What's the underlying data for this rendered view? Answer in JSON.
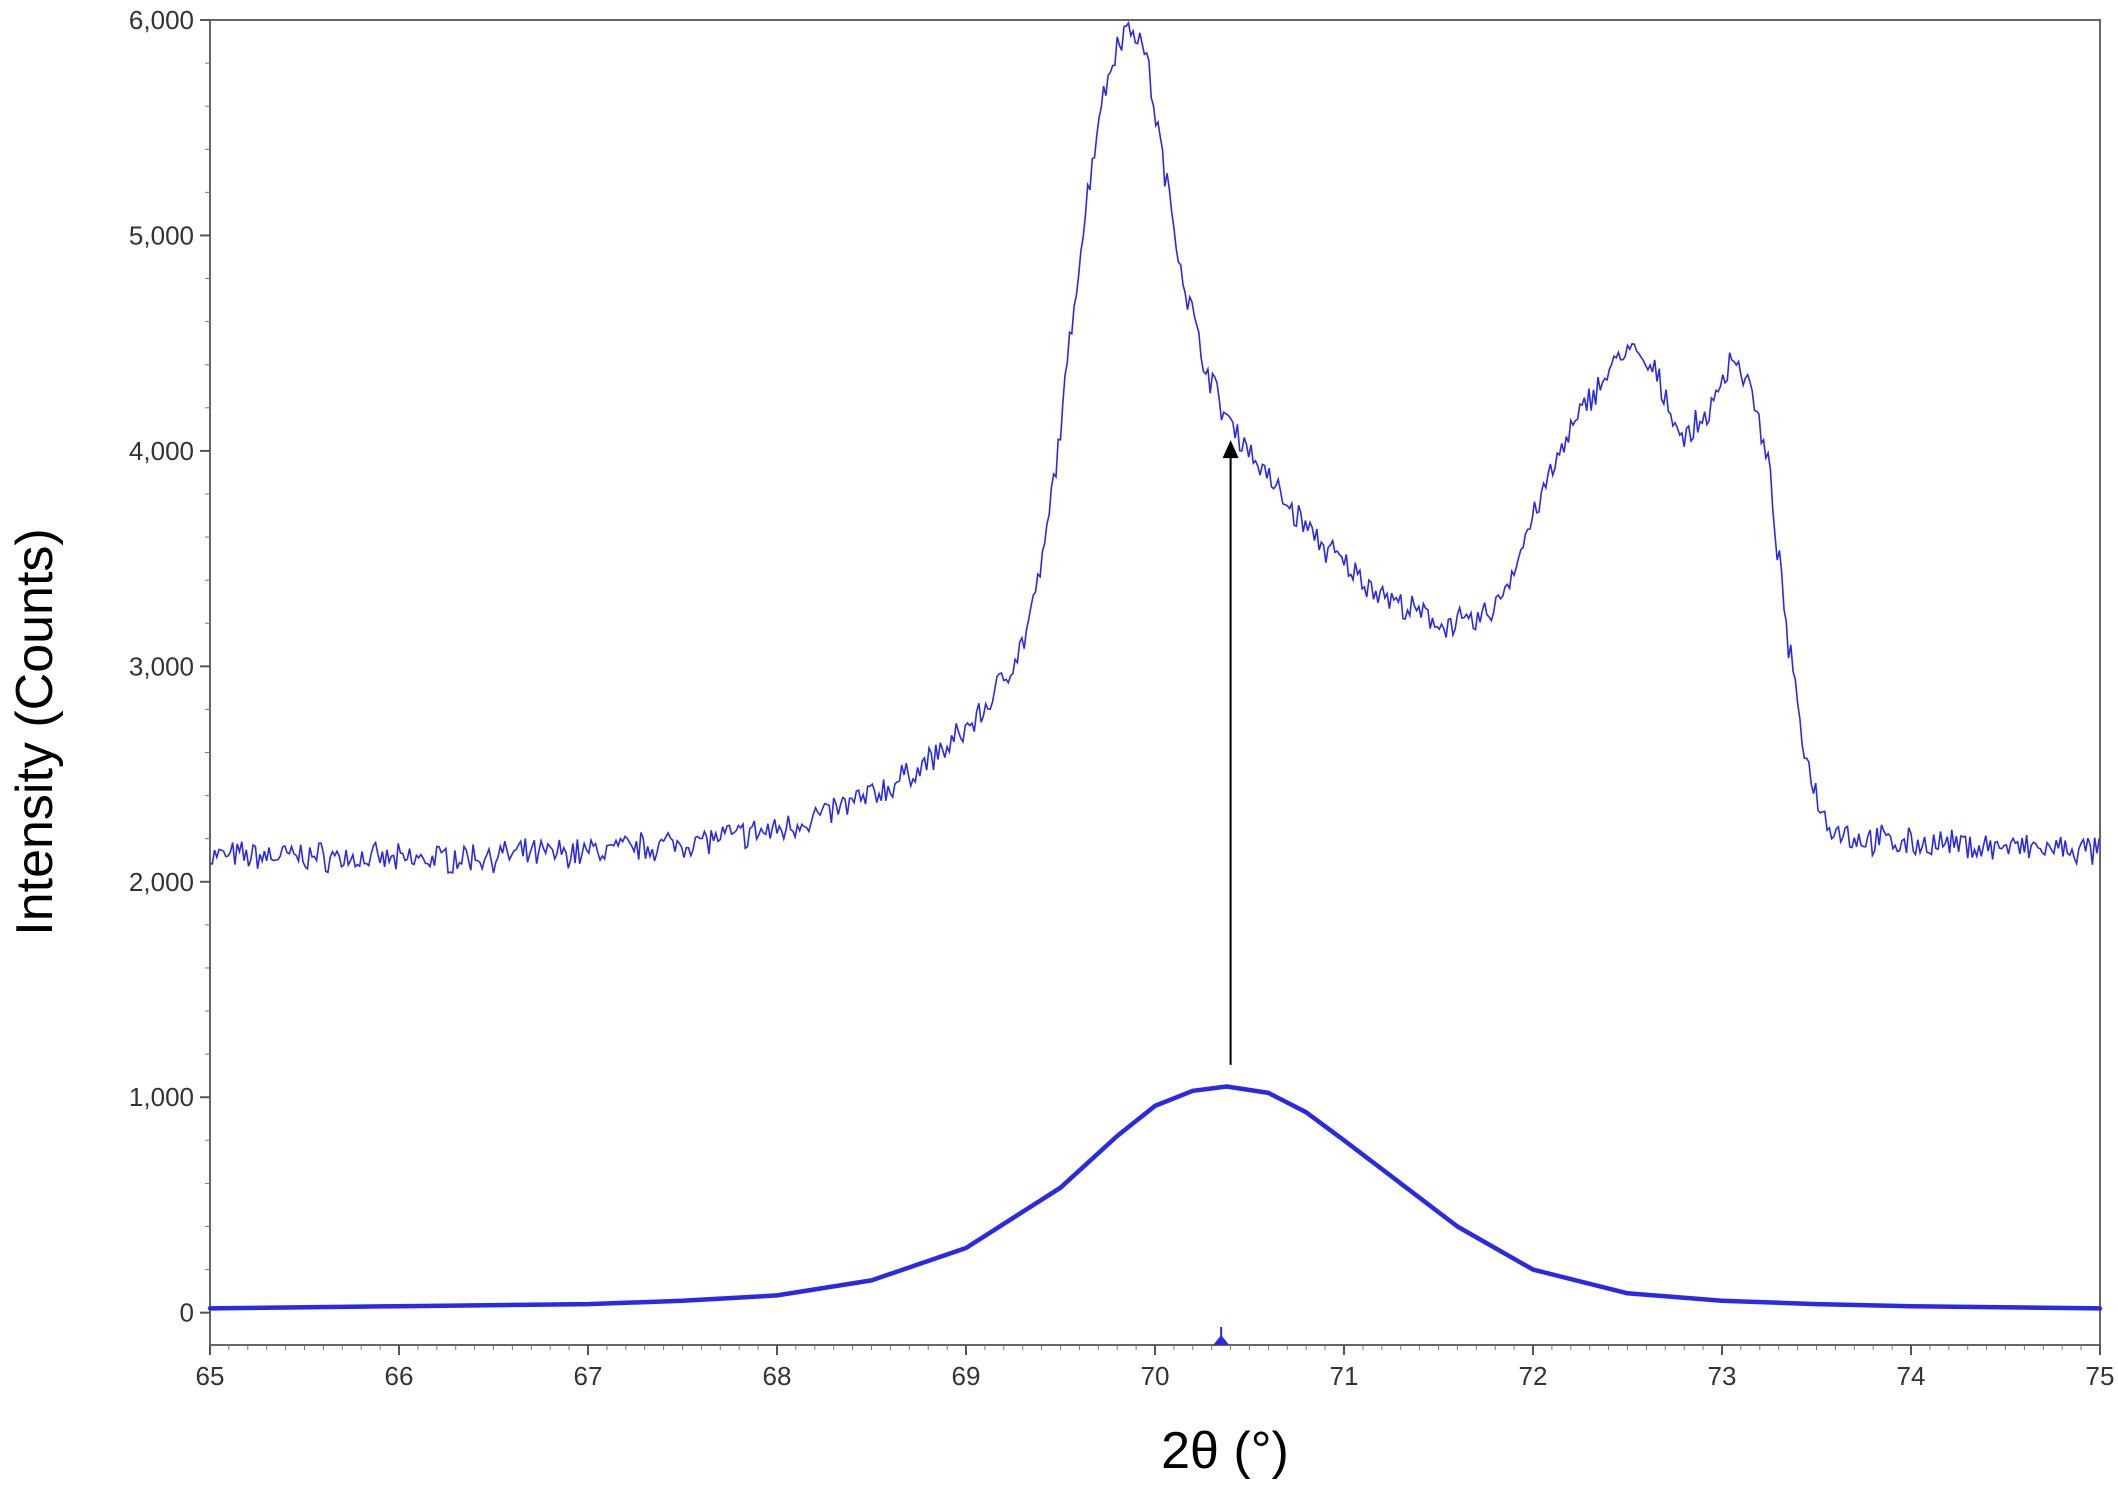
{
  "chart_data": {
    "type": "line",
    "title": "",
    "xlabel": "2θ (°)",
    "ylabel": "Intensity (Counts)",
    "xlim": [
      65,
      75
    ],
    "ylim": [
      -150,
      6000
    ],
    "grid": false,
    "legend": "none",
    "x_ticks": [
      65,
      66,
      67,
      68,
      69,
      70,
      71,
      72,
      73,
      74,
      75
    ],
    "x_tick_labels": [
      "65",
      "66",
      "67",
      "68",
      "69",
      "70",
      "71",
      "72",
      "73",
      "74",
      "75"
    ],
    "y_ticks": [
      0,
      1000,
      2000,
      3000,
      4000,
      5000,
      6000
    ],
    "y_tick_labels": [
      "0",
      "1,000",
      "2,000",
      "3,000",
      "4,000",
      "5,000",
      "6,000"
    ],
    "colors": {
      "series": "#2a2ae6",
      "arrow": "#000000",
      "axis": "#555555"
    },
    "series": [
      {
        "style": "thin-noisy",
        "x": [
          65.0,
          65.5,
          66.0,
          66.5,
          67.0,
          67.5,
          68.0,
          68.3,
          68.6,
          68.9,
          69.1,
          69.3,
          69.4,
          69.5,
          69.6,
          69.7,
          69.8,
          69.88,
          69.95,
          70.05,
          70.15,
          70.25,
          70.35,
          70.5,
          70.7,
          70.9,
          71.1,
          71.3,
          71.5,
          71.7,
          71.8,
          71.9,
          72.0,
          72.15,
          72.3,
          72.5,
          72.65,
          72.8,
          72.95,
          73.05,
          73.15,
          73.25,
          73.35,
          73.45,
          73.55,
          73.7,
          74.0,
          74.5,
          75.0
        ],
        "y": [
          2120,
          2120,
          2100,
          2120,
          2140,
          2180,
          2240,
          2330,
          2440,
          2620,
          2800,
          3100,
          3450,
          4100,
          4900,
          5550,
          5900,
          5980,
          5850,
          5300,
          4800,
          4450,
          4200,
          4000,
          3750,
          3550,
          3400,
          3280,
          3200,
          3200,
          3280,
          3450,
          3700,
          4000,
          4250,
          4480,
          4350,
          4050,
          4200,
          4450,
          4300,
          3900,
          3100,
          2550,
          2280,
          2200,
          2180,
          2160,
          2140
        ]
      },
      {
        "style": "thick-smooth",
        "peak_x": 70.38,
        "x": [
          65.0,
          66.0,
          67.0,
          67.5,
          68.0,
          68.5,
          69.0,
          69.5,
          69.8,
          70.0,
          70.2,
          70.38,
          70.6,
          70.8,
          71.0,
          71.3,
          71.6,
          72.0,
          72.5,
          73.0,
          73.5,
          74.0,
          75.0
        ],
        "y": [
          20,
          30,
          40,
          55,
          80,
          150,
          300,
          580,
          820,
          960,
          1030,
          1050,
          1020,
          930,
          800,
          600,
          400,
          200,
          90,
          55,
          40,
          30,
          20
        ]
      }
    ],
    "annotations": [
      {
        "type": "arrow",
        "x": 70.4,
        "y_from": 1150,
        "y_to": 4050
      },
      {
        "type": "peak-marker",
        "x": 70.35
      }
    ]
  }
}
